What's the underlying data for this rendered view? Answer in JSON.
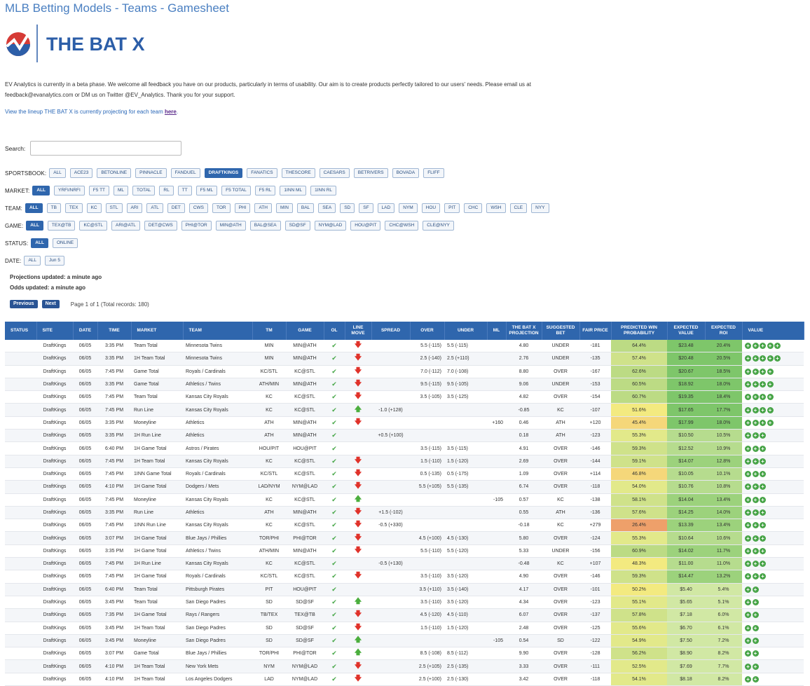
{
  "page_title": "MLB Betting Models - Teams - Gamesheet",
  "logo_text": "THE BAT X",
  "intro": "EV Analytics is currently in a beta phase.  We welcome all feedback you have on our products, particularly in terms of usability. Our aim is to create products perfectly tailored to our users' needs.  Please email us at feedback@evanalytics.com or DM us on Twitter @EV_Analytics.  Thank you for your support.",
  "lineup_text": "View the lineup THE BAT X is currently projecting for each team ",
  "lineup_link": "here",
  "lineup_period": ".",
  "search": {
    "label": "Search:",
    "value": ""
  },
  "filters": [
    {
      "label": "SPORTSBOOK:",
      "options": [
        "ALL",
        "ACE23",
        "BETONLINE",
        "PINNACLE",
        "FANDUEL",
        "DRAFTKINGS",
        "FANATICS",
        "THESCORE",
        "CAESARS",
        "BETRIVERS",
        "BOVADA",
        "FLIFF"
      ],
      "active": 5
    },
    {
      "label": "MARKET:",
      "options": [
        "ALL",
        "YRFI/NRFI",
        "F5 TT",
        "ML",
        "TOTAL",
        "RL",
        "TT",
        "F5 ML",
        "F5 TOTAL",
        "F5 RL",
        "1INN ML",
        "1INN RL"
      ],
      "active": 0
    },
    {
      "label": "TEAM:",
      "options": [
        "ALL",
        "TB",
        "TEX",
        "KC",
        "STL",
        "ARI",
        "ATL",
        "DET",
        "CWS",
        "TOR",
        "PHI",
        "ATH",
        "MIN",
        "BAL",
        "SEA",
        "SD",
        "SF",
        "LAD",
        "NYM",
        "HOU",
        "PIT",
        "CHC",
        "WSH",
        "CLE",
        "NYY"
      ],
      "active": 0
    },
    {
      "label": "GAME:",
      "options": [
        "ALL",
        "TEX@TB",
        "KC@STL",
        "ARI@ATL",
        "DET@CWS",
        "PHI@TOR",
        "MIN@ATH",
        "BAL@SEA",
        "SD@SF",
        "NYM@LAD",
        "HOU@PIT",
        "CHC@WSH",
        "CLE@NYY"
      ],
      "active": 0
    },
    {
      "label": "STATUS:",
      "options": [
        "ALL",
        "ONLINE"
      ],
      "active": 0
    },
    {
      "label": "DATE:",
      "options": [
        "ALL",
        "Jun 5"
      ],
      "active": -1
    }
  ],
  "projections_updated": "Projections updated: a minute ago",
  "odds_updated": "Odds updated: a minute ago",
  "pager": {
    "previous": "Previous",
    "next": "Next",
    "info": "Page 1 of 1 (Total records: 180)"
  },
  "columns": [
    "STATUS",
    "SITE",
    "DATE",
    "TIME",
    "MARKET",
    "TEAM",
    "TM",
    "GAME",
    "OL",
    "LINE MOVE",
    "SPREAD",
    "OVER",
    "UNDER",
    "ML",
    "THE BAT X PROJECTION",
    "SUGGESTED BET",
    "FAIR PRICE",
    "PREDICTED WIN PROBABILITY",
    "EXPECTED VALUE",
    "EXPECTED ROI",
    "VALUE"
  ],
  "colors": {
    "accent": "#2f66ad",
    "ok": "#49a84a",
    "down": "#e0322a"
  },
  "rows": [
    {
      "site": "DraftKings",
      "date": "06/05",
      "time": "3:35 PM",
      "market": "Team Total",
      "team": "Minnesota Twins",
      "tm": "MIN",
      "game": "MIN@ATH",
      "move": "down",
      "spread": "",
      "over": "5.5 (-115)",
      "under": "5.5 (-115)",
      "ml": "",
      "proj": "4.80",
      "bet": "UNDER",
      "fair": "-181",
      "prob": "64.4%",
      "ev": "$23.48",
      "roi": "20.4%",
      "value": 5
    },
    {
      "site": "DraftKings",
      "date": "06/05",
      "time": "3:35 PM",
      "market": "1H Team Total",
      "team": "Minnesota Twins",
      "tm": "MIN",
      "game": "MIN@ATH",
      "move": "down",
      "spread": "",
      "over": "2.5 (-140)",
      "under": "2.5 (+110)",
      "ml": "",
      "proj": "2.76",
      "bet": "UNDER",
      "fair": "-135",
      "prob": "57.4%",
      "ev": "$20.48",
      "roi": "20.5%",
      "value": 5
    },
    {
      "site": "DraftKings",
      "date": "06/05",
      "time": "7:45 PM",
      "market": "Game Total",
      "team": "Royals / Cardinals",
      "tm": "KC/STL",
      "game": "KC@STL",
      "move": "down",
      "spread": "",
      "over": "7.0 (-112)",
      "under": "7.0 (-108)",
      "ml": "",
      "proj": "8.80",
      "bet": "OVER",
      "fair": "-167",
      "prob": "62.6%",
      "ev": "$20.67",
      "roi": "18.5%",
      "value": 4
    },
    {
      "site": "DraftKings",
      "date": "06/05",
      "time": "3:35 PM",
      "market": "Game Total",
      "team": "Athletics / Twins",
      "tm": "ATH/MIN",
      "game": "MIN@ATH",
      "move": "down",
      "spread": "",
      "over": "9.5 (-115)",
      "under": "9.5 (-105)",
      "ml": "",
      "proj": "9.06",
      "bet": "UNDER",
      "fair": "-153",
      "prob": "60.5%",
      "ev": "$18.92",
      "roi": "18.0%",
      "value": 4
    },
    {
      "site": "DraftKings",
      "date": "06/05",
      "time": "7:45 PM",
      "market": "Team Total",
      "team": "Kansas City Royals",
      "tm": "KC",
      "game": "KC@STL",
      "move": "down",
      "spread": "",
      "over": "3.5 (-105)",
      "under": "3.5 (-125)",
      "ml": "",
      "proj": "4.82",
      "bet": "OVER",
      "fair": "-154",
      "prob": "60.7%",
      "ev": "$19.35",
      "roi": "18.4%",
      "value": 4
    },
    {
      "site": "DraftKings",
      "date": "06/05",
      "time": "7:45 PM",
      "market": "Run Line",
      "team": "Kansas City Royals",
      "tm": "KC",
      "game": "KC@STL",
      "move": "up",
      "spread": "-1.0 (+128)",
      "over": "",
      "under": "",
      "ml": "",
      "proj": "-0.85",
      "bet": "KC",
      "fair": "-107",
      "prob": "51.6%",
      "ev": "$17.65",
      "roi": "17.7%",
      "value": 4
    },
    {
      "site": "DraftKings",
      "date": "06/05",
      "time": "3:35 PM",
      "market": "Moneyline",
      "team": "Athletics",
      "tm": "ATH",
      "game": "MIN@ATH",
      "move": "down",
      "spread": "",
      "over": "",
      "under": "",
      "ml": "+160",
      "proj": "0.46",
      "bet": "ATH",
      "fair": "+120",
      "prob": "45.4%",
      "ev": "$17.99",
      "roi": "18.0%",
      "value": 4
    },
    {
      "site": "DraftKings",
      "date": "06/05",
      "time": "3:35 PM",
      "market": "1H Run Line",
      "team": "Athletics",
      "tm": "ATH",
      "game": "MIN@ATH",
      "move": "",
      "spread": "+0.5 (+100)",
      "over": "",
      "under": "",
      "ml": "",
      "proj": "0.18",
      "bet": "ATH",
      "fair": "-123",
      "prob": "55.3%",
      "ev": "$10.50",
      "roi": "10.5%",
      "value": 3
    },
    {
      "site": "DraftKings",
      "date": "06/05",
      "time": "6:40 PM",
      "market": "1H Game Total",
      "team": "Astros / Pirates",
      "tm": "HOU/PIT",
      "game": "HOU@PIT",
      "move": "",
      "spread": "",
      "over": "3.5 (-115)",
      "under": "3.5 (-115)",
      "ml": "",
      "proj": "4.91",
      "bet": "OVER",
      "fair": "-146",
      "prob": "59.3%",
      "ev": "$12.52",
      "roi": "10.9%",
      "value": 3
    },
    {
      "site": "DraftKings",
      "date": "06/05",
      "time": "7:45 PM",
      "market": "1H Team Total",
      "team": "Kansas City Royals",
      "tm": "KC",
      "game": "KC@STL",
      "move": "down",
      "spread": "",
      "over": "1.5 (-110)",
      "under": "1.5 (-120)",
      "ml": "",
      "proj": "2.69",
      "bet": "OVER",
      "fair": "-144",
      "prob": "59.1%",
      "ev": "$14.07",
      "roi": "12.8%",
      "value": 3
    },
    {
      "site": "DraftKings",
      "date": "06/05",
      "time": "7:45 PM",
      "market": "1INN Game Total",
      "team": "Royals / Cardinals",
      "tm": "KC/STL",
      "game": "KC@STL",
      "move": "down",
      "spread": "",
      "over": "0.5 (-135)",
      "under": "0.5 (-175)",
      "ml": "",
      "proj": "1.09",
      "bet": "OVER",
      "fair": "+114",
      "prob": "46.8%",
      "ev": "$10.05",
      "roi": "10.1%",
      "value": 3
    },
    {
      "site": "DraftKings",
      "date": "06/05",
      "time": "4:10 PM",
      "market": "1H Game Total",
      "team": "Dodgers / Mets",
      "tm": "LAD/NYM",
      "game": "NYM@LAD",
      "move": "down",
      "spread": "",
      "over": "5.5 (+105)",
      "under": "5.5 (-135)",
      "ml": "",
      "proj": "6.74",
      "bet": "OVER",
      "fair": "-118",
      "prob": "54.0%",
      "ev": "$10.76",
      "roi": "10.8%",
      "value": 3
    },
    {
      "site": "DraftKings",
      "date": "06/05",
      "time": "7:45 PM",
      "market": "Moneyline",
      "team": "Kansas City Royals",
      "tm": "KC",
      "game": "KC@STL",
      "move": "up",
      "spread": "",
      "over": "",
      "under": "",
      "ml": "-105",
      "proj": "0.57",
      "bet": "KC",
      "fair": "-138",
      "prob": "58.1%",
      "ev": "$14.04",
      "roi": "13.4%",
      "value": 3
    },
    {
      "site": "DraftKings",
      "date": "06/05",
      "time": "3:35 PM",
      "market": "Run Line",
      "team": "Athletics",
      "tm": "ATH",
      "game": "MIN@ATH",
      "move": "down",
      "spread": "+1.5 (-102)",
      "over": "",
      "under": "",
      "ml": "",
      "proj": "0.55",
      "bet": "ATH",
      "fair": "-136",
      "prob": "57.6%",
      "ev": "$14.25",
      "roi": "14.0%",
      "value": 3
    },
    {
      "site": "DraftKings",
      "date": "06/05",
      "time": "7:45 PM",
      "market": "1INN Run Line",
      "team": "Kansas City Royals",
      "tm": "KC",
      "game": "KC@STL",
      "move": "down",
      "spread": "-0.5 (+330)",
      "over": "",
      "under": "",
      "ml": "",
      "proj": "-0.18",
      "bet": "KC",
      "fair": "+279",
      "prob": "26.4%",
      "ev": "$13.39",
      "roi": "13.4%",
      "value": 3
    },
    {
      "site": "DraftKings",
      "date": "06/05",
      "time": "3:07 PM",
      "market": "1H Game Total",
      "team": "Blue Jays / Phillies",
      "tm": "TOR/PHI",
      "game": "PHI@TOR",
      "move": "down",
      "spread": "",
      "over": "4.5 (+100)",
      "under": "4.5 (-130)",
      "ml": "",
      "proj": "5.80",
      "bet": "OVER",
      "fair": "-124",
      "prob": "55.3%",
      "ev": "$10.64",
      "roi": "10.6%",
      "value": 3
    },
    {
      "site": "DraftKings",
      "date": "06/05",
      "time": "3:35 PM",
      "market": "1H Game Total",
      "team": "Athletics / Twins",
      "tm": "ATH/MIN",
      "game": "MIN@ATH",
      "move": "down",
      "spread": "",
      "over": "5.5 (-110)",
      "under": "5.5 (-120)",
      "ml": "",
      "proj": "5.33",
      "bet": "UNDER",
      "fair": "-156",
      "prob": "60.9%",
      "ev": "$14.02",
      "roi": "11.7%",
      "value": 3
    },
    {
      "site": "DraftKings",
      "date": "06/05",
      "time": "7:45 PM",
      "market": "1H Run Line",
      "team": "Kansas City Royals",
      "tm": "KC",
      "game": "KC@STL",
      "move": "",
      "spread": "-0.5 (+130)",
      "over": "",
      "under": "",
      "ml": "",
      "proj": "-0.48",
      "bet": "KC",
      "fair": "+107",
      "prob": "48.3%",
      "ev": "$11.00",
      "roi": "11.0%",
      "value": 3
    },
    {
      "site": "DraftKings",
      "date": "06/05",
      "time": "7:45 PM",
      "market": "1H Game Total",
      "team": "Royals / Cardinals",
      "tm": "KC/STL",
      "game": "KC@STL",
      "move": "down",
      "spread": "",
      "over": "3.5 (-110)",
      "under": "3.5 (-120)",
      "ml": "",
      "proj": "4.90",
      "bet": "OVER",
      "fair": "-146",
      "prob": "59.3%",
      "ev": "$14.47",
      "roi": "13.2%",
      "value": 3
    },
    {
      "site": "DraftKings",
      "date": "06/05",
      "time": "6:40 PM",
      "market": "Team Total",
      "team": "Pittsburgh Pirates",
      "tm": "PIT",
      "game": "HOU@PIT",
      "move": "",
      "spread": "",
      "over": "3.5 (+110)",
      "under": "3.5 (-140)",
      "ml": "",
      "proj": "4.17",
      "bet": "OVER",
      "fair": "-101",
      "prob": "50.2%",
      "ev": "$5.40",
      "roi": "5.4%",
      "value": 2
    },
    {
      "site": "DraftKings",
      "date": "06/05",
      "time": "3:45 PM",
      "market": "Team Total",
      "team": "San Diego Padres",
      "tm": "SD",
      "game": "SD@SF",
      "move": "up",
      "spread": "",
      "over": "3.5 (-110)",
      "under": "3.5 (-120)",
      "ml": "",
      "proj": "4.34",
      "bet": "OVER",
      "fair": "-123",
      "prob": "55.1%",
      "ev": "$5.65",
      "roi": "5.1%",
      "value": 2
    },
    {
      "site": "DraftKings",
      "date": "06/05",
      "time": "7:35 PM",
      "market": "1H Game Total",
      "team": "Rays / Rangers",
      "tm": "TB/TEX",
      "game": "TEX@TB",
      "move": "down",
      "spread": "",
      "over": "4.5 (-120)",
      "under": "4.5 (-110)",
      "ml": "",
      "proj": "6.07",
      "bet": "OVER",
      "fair": "-137",
      "prob": "57.8%",
      "ev": "$7.18",
      "roi": "6.0%",
      "value": 2
    },
    {
      "site": "DraftKings",
      "date": "06/05",
      "time": "3:45 PM",
      "market": "1H Team Total",
      "team": "San Diego Padres",
      "tm": "SD",
      "game": "SD@SF",
      "move": "down",
      "spread": "",
      "over": "1.5 (-110)",
      "under": "1.5 (-120)",
      "ml": "",
      "proj": "2.48",
      "bet": "OVER",
      "fair": "-125",
      "prob": "55.6%",
      "ev": "$6.70",
      "roi": "6.1%",
      "value": 2
    },
    {
      "site": "DraftKings",
      "date": "06/05",
      "time": "3:45 PM",
      "market": "Moneyline",
      "team": "San Diego Padres",
      "tm": "SD",
      "game": "SD@SF",
      "move": "up",
      "spread": "",
      "over": "",
      "under": "",
      "ml": "-105",
      "proj": "0.54",
      "bet": "SD",
      "fair": "-122",
      "prob": "54.9%",
      "ev": "$7.50",
      "roi": "7.2%",
      "value": 2
    },
    {
      "site": "DraftKings",
      "date": "06/05",
      "time": "3:07 PM",
      "market": "Game Total",
      "team": "Blue Jays / Phillies",
      "tm": "TOR/PHI",
      "game": "PHI@TOR",
      "move": "up",
      "spread": "",
      "over": "8.5 (-108)",
      "under": "8.5 (-112)",
      "ml": "",
      "proj": "9.90",
      "bet": "OVER",
      "fair": "-128",
      "prob": "56.2%",
      "ev": "$8.90",
      "roi": "8.2%",
      "value": 2
    },
    {
      "site": "DraftKings",
      "date": "06/05",
      "time": "4:10 PM",
      "market": "1H Team Total",
      "team": "New York Mets",
      "tm": "NYM",
      "game": "NYM@LAD",
      "move": "down",
      "spread": "",
      "over": "2.5 (+105)",
      "under": "2.5 (-135)",
      "ml": "",
      "proj": "3.33",
      "bet": "OVER",
      "fair": "-111",
      "prob": "52.5%",
      "ev": "$7.69",
      "roi": "7.7%",
      "value": 2
    },
    {
      "site": "DraftKings",
      "date": "06/05",
      "time": "4:10 PM",
      "market": "1H Team Total",
      "team": "Los Angeles Dodgers",
      "tm": "LAD",
      "game": "NYM@LAD",
      "move": "down",
      "spread": "",
      "over": "2.5 (+100)",
      "under": "2.5 (-130)",
      "ml": "",
      "proj": "3.42",
      "bet": "OVER",
      "fair": "-118",
      "prob": "54.1%",
      "ev": "$8.18",
      "roi": "8.2%",
      "value": 2
    }
  ]
}
